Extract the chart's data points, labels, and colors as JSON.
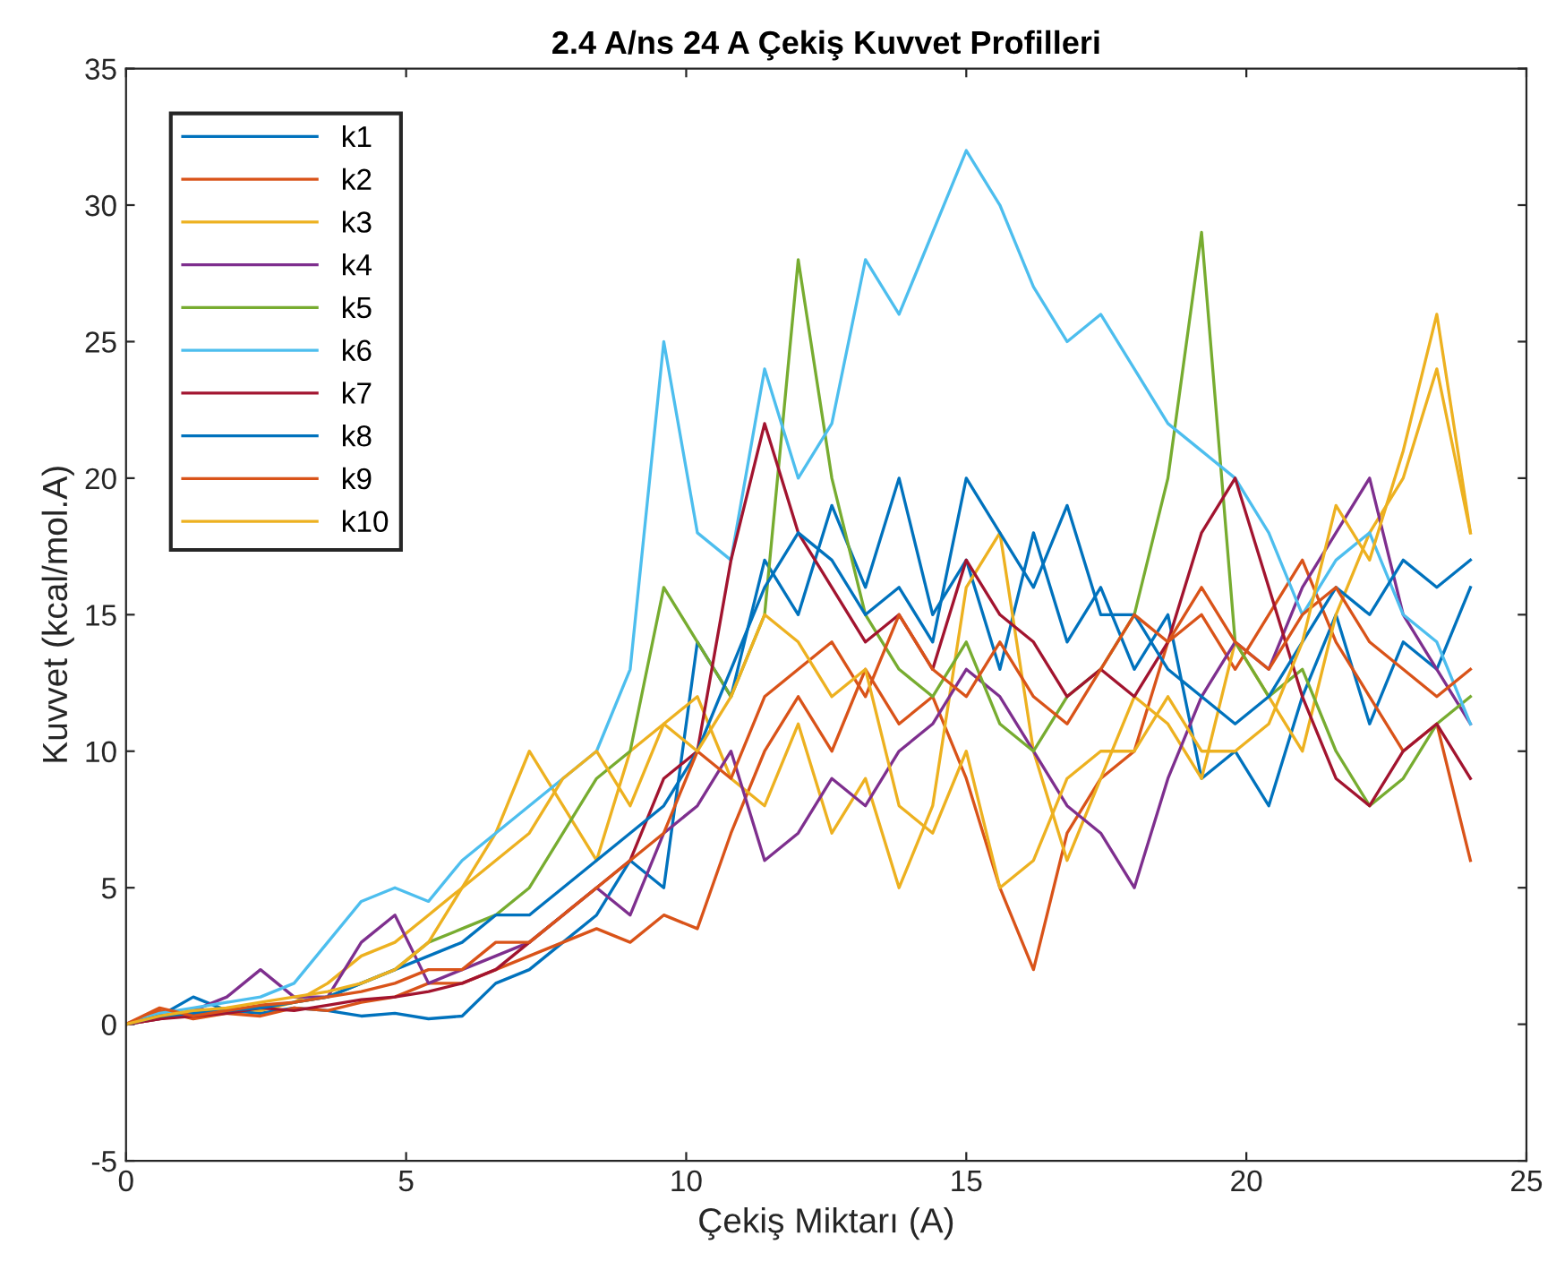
{
  "chart_data": {
    "type": "line",
    "title": "2.4 A/ns 24 A Çekiş Kuvvet Profilleri",
    "xlabel": "Çekiş Miktarı (A)",
    "ylabel": "Kuvvet (kcal/mol.A)",
    "x": [
      0,
      0.6,
      1.2,
      1.8,
      2.4,
      3.0,
      3.6,
      4.2,
      4.8,
      5.4,
      6.0,
      6.6,
      7.2,
      7.8,
      8.4,
      9.0,
      9.6,
      10.2,
      10.8,
      11.4,
      12.0,
      12.6,
      13.2,
      13.8,
      14.4,
      15.0,
      15.6,
      16.2,
      16.8,
      17.4,
      18.0,
      18.6,
      19.2,
      19.8,
      20.4,
      21.0,
      21.6,
      22.2,
      22.8,
      23.4,
      24.0
    ],
    "xlim": [
      0,
      25
    ],
    "xticks": [
      0,
      5,
      10,
      15,
      20,
      25
    ],
    "ylim": [
      -5,
      35
    ],
    "yticks": [
      -5,
      0,
      5,
      10,
      15,
      20,
      25,
      30,
      35
    ],
    "grid": false,
    "legend": "top left",
    "line_style": "solid",
    "series": [
      {
        "name": "k1",
        "color": "#0072bd",
        "values": [
          0,
          0.3,
          1,
          0.5,
          0.4,
          0.6,
          0.5,
          0.3,
          0.4,
          0.2,
          0.3,
          1.5,
          2,
          3,
          4,
          6,
          5,
          14,
          12,
          17,
          15,
          19,
          16,
          20,
          15,
          17,
          13,
          18,
          14,
          16,
          13,
          15,
          9,
          10,
          8,
          12,
          15,
          11,
          14,
          13,
          16
        ]
      },
      {
        "name": "k2",
        "color": "#d95319",
        "values": [
          0,
          0.5,
          0.2,
          0.4,
          0.3,
          0.6,
          0.5,
          0.8,
          1,
          1.5,
          1.5,
          2,
          2.5,
          3,
          3.5,
          3,
          4,
          3.5,
          7,
          10,
          12,
          10,
          13,
          11,
          12,
          9,
          5,
          2,
          7,
          9,
          10,
          14,
          15,
          13,
          15,
          17,
          14,
          12,
          10,
          11,
          6
        ]
      },
      {
        "name": "k3",
        "color": "#edb120",
        "values": [
          0,
          0.2,
          0.4,
          0.6,
          0.5,
          0.8,
          1.5,
          2.5,
          3,
          4,
          5,
          7,
          10,
          8,
          6,
          10,
          11,
          12,
          9,
          8,
          11,
          7,
          9,
          5,
          8,
          16,
          18,
          10,
          6,
          9,
          12,
          11,
          9,
          14,
          12,
          10,
          15,
          18,
          20,
          24,
          18
        ]
      },
      {
        "name": "k4",
        "color": "#7e2f8e",
        "values": [
          0,
          0.2,
          0.5,
          1,
          2,
          1,
          1,
          3,
          4,
          1.5,
          2,
          2.5,
          3,
          4,
          5,
          4,
          7,
          8,
          10,
          6,
          7,
          9,
          8,
          10,
          11,
          13,
          12,
          10,
          8,
          7,
          5,
          9,
          12,
          14,
          13,
          16,
          18,
          20,
          15,
          13,
          11
        ]
      },
      {
        "name": "k5",
        "color": "#77ac30",
        "values": [
          0,
          0.3,
          0.4,
          0.5,
          0.6,
          0.8,
          1,
          1.5,
          2,
          3,
          3.5,
          4,
          5,
          7,
          9,
          10,
          16,
          14,
          12,
          15,
          28,
          20,
          15,
          13,
          12,
          14,
          11,
          10,
          12,
          13,
          15,
          20,
          29,
          14,
          12,
          13,
          10,
          8,
          9,
          11,
          12
        ]
      },
      {
        "name": "k6",
        "color": "#4dbeee",
        "values": [
          0,
          0.4,
          0.6,
          0.8,
          1,
          1.5,
          3,
          4.5,
          5,
          4.5,
          6,
          7,
          8,
          9,
          10,
          13,
          25,
          18,
          17,
          24,
          20,
          22,
          28,
          26,
          29,
          32,
          30,
          27,
          25,
          26,
          24,
          22,
          21,
          20,
          18,
          15,
          17,
          18,
          15,
          14,
          11
        ]
      },
      {
        "name": "k7",
        "color": "#a2142f",
        "values": [
          0,
          0.2,
          0.3,
          0.4,
          0.6,
          0.5,
          0.7,
          0.9,
          1,
          1.2,
          1.5,
          2,
          3,
          4,
          5,
          6,
          9,
          10,
          17,
          22,
          18,
          16,
          14,
          15,
          13,
          17,
          15,
          14,
          12,
          13,
          12,
          14,
          18,
          20,
          16,
          12,
          9,
          8,
          10,
          11,
          9
        ]
      },
      {
        "name": "k8",
        "color": "#0072bd",
        "values": [
          0,
          0.3,
          0.4,
          0.5,
          0.6,
          0.8,
          1,
          1.5,
          2,
          2.5,
          3,
          4,
          4,
          5,
          6,
          7,
          8,
          10,
          13,
          16,
          18,
          17,
          15,
          16,
          14,
          20,
          18,
          16,
          19,
          15,
          15,
          13,
          12,
          11,
          12,
          14,
          16,
          15,
          17,
          16,
          17
        ]
      },
      {
        "name": "k9",
        "color": "#d95319",
        "values": [
          0,
          0.6,
          0.3,
          0.5,
          0.7,
          0.8,
          1,
          1.2,
          1.5,
          2,
          2,
          3,
          3,
          4,
          5,
          6,
          7,
          10,
          9,
          12,
          13,
          14,
          12,
          15,
          13,
          12,
          14,
          12,
          11,
          13,
          15,
          14,
          16,
          14,
          13,
          15,
          16,
          14,
          13,
          12,
          13
        ]
      },
      {
        "name": "k10",
        "color": "#edb120",
        "values": [
          0,
          0.3,
          0.5,
          0.6,
          0.8,
          1,
          1.2,
          1.5,
          2,
          3,
          5,
          6,
          7,
          9,
          10,
          8,
          11,
          10,
          12,
          15,
          14,
          12,
          13,
          8,
          7,
          10,
          5,
          6,
          9,
          10,
          10,
          12,
          10,
          10,
          11,
          14,
          19,
          17,
          21,
          26,
          18
        ]
      }
    ]
  }
}
